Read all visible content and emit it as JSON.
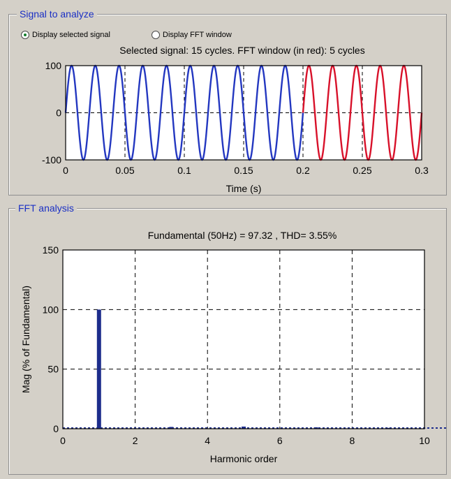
{
  "signal_panel": {
    "title": "Signal to analyze",
    "radio_selected_label": "Display selected signal",
    "radio_fft_label": "Display FFT window",
    "plot_title": "Selected signal: 15 cycles. FFT window (in red): 5 cycles"
  },
  "fft_panel": {
    "title": "FFT analysis",
    "plot_title": "Fundamental (50Hz) = 97.32 , THD= 3.55%"
  },
  "colors": {
    "signal": "#2337c0",
    "fft_window": "#d8112a",
    "panel_title": "#1a2fc4",
    "bar": "#1d2d8c"
  },
  "chart_data": [
    {
      "type": "line",
      "title": "Selected signal: 15 cycles. FFT window (in red): 5 cycles",
      "xlabel": "Time (s)",
      "ylabel": "",
      "xlim": [
        0,
        0.3
      ],
      "ylim": [
        -100,
        100
      ],
      "xticks": [
        "0",
        "0.05",
        "0.1",
        "0.15",
        "0.2",
        "0.25",
        "0.3"
      ],
      "yticks": [
        "-100",
        "0",
        "100"
      ],
      "grid": true,
      "series": [
        {
          "frequency_hz": 50,
          "amplitude": 100,
          "x_range": [
            0,
            0.2
          ],
          "color": "#2337c0"
        },
        {
          "frequency_hz": 50,
          "amplitude": 100,
          "x_range": [
            0.2,
            0.3
          ],
          "color": "#d8112a"
        }
      ]
    },
    {
      "type": "bar",
      "title": "Fundamental (50Hz) = 97.32 , THD= 3.55%",
      "xlabel": "Harmonic order",
      "ylabel": "Mag (% of Fundamental)",
      "xlim": [
        0,
        10
      ],
      "ylim": [
        0,
        150
      ],
      "xticks": [
        "0",
        "2",
        "4",
        "6",
        "8",
        "10"
      ],
      "yticks": [
        "0",
        "50",
        "100",
        "150"
      ],
      "grid": true,
      "x": [
        0,
        1,
        2,
        3,
        4,
        5,
        6,
        7,
        8,
        9,
        10
      ],
      "values": [
        0,
        100,
        0.3,
        1.5,
        0.2,
        1.8,
        0.1,
        1.2,
        0.1,
        0.7,
        0.1
      ]
    }
  ]
}
